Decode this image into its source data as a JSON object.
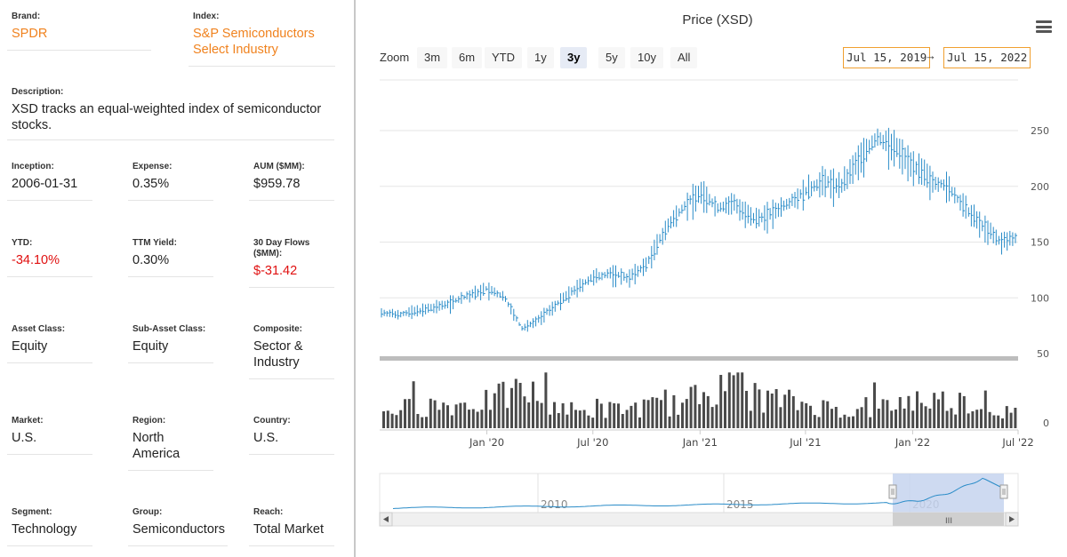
{
  "info": {
    "brand": {
      "label": "Brand:",
      "value": "SPDR"
    },
    "index": {
      "label": "Index:",
      "value_line1": "S&P Semiconductors",
      "value_line2": "Select Industry"
    },
    "description": {
      "label": "Description:",
      "line1": "XSD tracks an equal-weighted index of semiconductor",
      "line2": "stocks."
    },
    "inception": {
      "label": "Inception:",
      "value": "2006-01-31"
    },
    "expense": {
      "label": "Expense:",
      "value": "0.35%"
    },
    "aum": {
      "label": "AUM ($MM):",
      "value": "$959.78"
    },
    "ytd": {
      "label": "YTD:",
      "value": "-34.10%"
    },
    "ttm_yield": {
      "label": "TTM Yield:",
      "value": "0.30%"
    },
    "flows": {
      "label_line1": "30 Day Flows",
      "label_line2": "($MM):",
      "value": "$-31.42"
    },
    "asset_class": {
      "label": "Asset Class:",
      "value": "Equity"
    },
    "sub_asset_class": {
      "label": "Sub-Asset Class:",
      "value": "Equity"
    },
    "composite": {
      "label": "Composite:",
      "value_line1": "Sector &",
      "value_line2": "Industry"
    },
    "market": {
      "label": "Market:",
      "value": "U.S."
    },
    "region": {
      "label": "Region:",
      "value_line1": "North",
      "value_line2": "America"
    },
    "country": {
      "label": "Country:",
      "value": "U.S."
    },
    "segment": {
      "label": "Segment:",
      "value": "Technology"
    },
    "group": {
      "label": "Group:",
      "value": "Semiconductors"
    },
    "reach": {
      "label": "Reach:",
      "value": "Total Market"
    }
  },
  "toolbar": {
    "zoom_label": "Zoom",
    "buttons": [
      "3m",
      "6m",
      "YTD",
      "1y",
      "3y",
      "5y",
      "10y",
      "All"
    ],
    "active": "3y",
    "range_from": "Jul 15, 2019",
    "range_arrow": "→",
    "range_to": "Jul 15, 2022"
  },
  "colors": {
    "line": "#2a8cc8",
    "volume": "#4a4a4a",
    "orange": "#f0821e",
    "negative": "#e01010",
    "navigator_fill": "#c5d3ef"
  },
  "chart_data": {
    "type": "line",
    "title": "Price (XSD)",
    "price_ylim": [
      50,
      250
    ],
    "price_ticks": [
      250,
      200,
      150,
      100,
      50
    ],
    "volume_tick": 0,
    "x_tick_labels": [
      "Jan '20",
      "Jul '20",
      "Jan '21",
      "Jul '21",
      "Jan '22",
      "Jul '22"
    ],
    "x_tick_dates": [
      "2020-01",
      "2020-07",
      "2021-01",
      "2021-07",
      "2022-01",
      "2022-07"
    ],
    "price_series": {
      "x": [
        "2019-07",
        "2019-08",
        "2019-09",
        "2019-10",
        "2019-11",
        "2019-12",
        "2020-01",
        "2020-02",
        "2020-03",
        "2020-04",
        "2020-05",
        "2020-06",
        "2020-07",
        "2020-08",
        "2020-09",
        "2020-10",
        "2020-11",
        "2020-12",
        "2021-01",
        "2021-02",
        "2021-03",
        "2021-04",
        "2021-05",
        "2021-06",
        "2021-07",
        "2021-08",
        "2021-09",
        "2021-10",
        "2021-11",
        "2021-12",
        "2022-01",
        "2022-02",
        "2022-03",
        "2022-04",
        "2022-05",
        "2022-06",
        "2022-07"
      ],
      "y": [
        87,
        85,
        88,
        91,
        96,
        102,
        108,
        100,
        72,
        82,
        95,
        108,
        118,
        122,
        118,
        130,
        160,
        180,
        195,
        180,
        185,
        170,
        175,
        185,
        195,
        205,
        200,
        225,
        243,
        235,
        220,
        205,
        200,
        180,
        165,
        150,
        155
      ]
    },
    "volume_series": {
      "x": [
        "2019-07",
        "2019-10",
        "2020-01",
        "2020-03",
        "2020-06",
        "2020-09",
        "2020-12",
        "2021-02",
        "2021-04",
        "2021-07",
        "2021-10",
        "2022-01",
        "2022-04",
        "2022-07"
      ],
      "y": [
        0.35,
        0.42,
        0.5,
        0.72,
        0.3,
        0.38,
        0.45,
        0.85,
        0.6,
        0.45,
        0.3,
        0.55,
        0.5,
        0.25
      ]
    },
    "navigator_labels": [
      "2010",
      "2015",
      "2020"
    ]
  }
}
